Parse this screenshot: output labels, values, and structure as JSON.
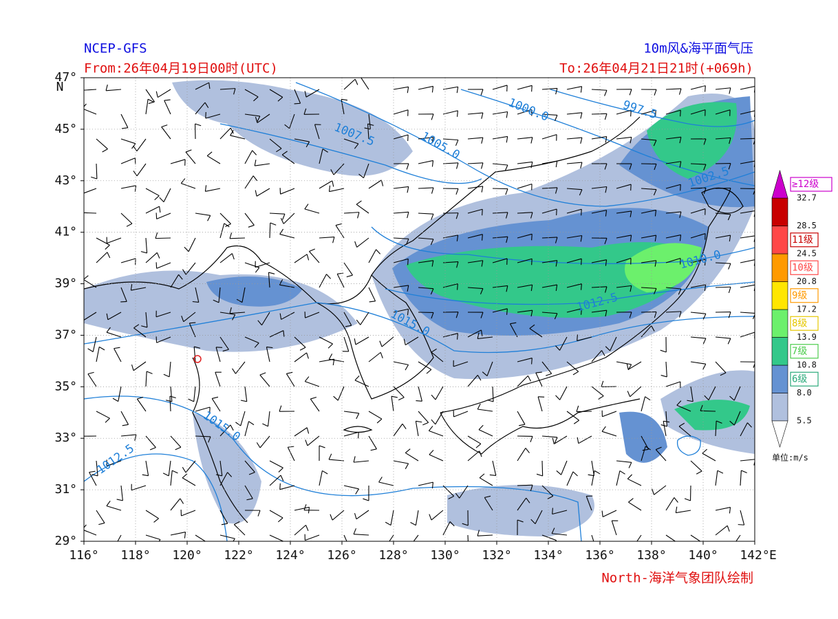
{
  "header": {
    "source": "NCEP-GFS",
    "product": "10m风&海平面气压",
    "from": "From:26年04月19日00时(UTC)",
    "to": "To:26年04月21日21时(+069h)"
  },
  "map": {
    "xlim": [
      116,
      142
    ],
    "ylim": [
      29,
      47
    ],
    "xticks": [
      {
        "value": 116,
        "label": "116°"
      },
      {
        "value": 118,
        "label": "118°"
      },
      {
        "value": 120,
        "label": "120°"
      },
      {
        "value": 122,
        "label": "122°"
      },
      {
        "value": 124,
        "label": "124°"
      },
      {
        "value": 126,
        "label": "126°"
      },
      {
        "value": 128,
        "label": "128°"
      },
      {
        "value": 130,
        "label": "130°"
      },
      {
        "value": 132,
        "label": "132°"
      },
      {
        "value": 134,
        "label": "134°"
      },
      {
        "value": 136,
        "label": "136°"
      },
      {
        "value": 138,
        "label": "138°"
      },
      {
        "value": 140,
        "label": "140°"
      },
      {
        "value": 142,
        "label": "142°"
      }
    ],
    "x_unit": "E",
    "yticks": [
      {
        "value": 29,
        "label": "29°"
      },
      {
        "value": 31,
        "label": "31°"
      },
      {
        "value": 33,
        "label": "33°"
      },
      {
        "value": 35,
        "label": "35°"
      },
      {
        "value": 37,
        "label": "37°"
      },
      {
        "value": 39,
        "label": "39°"
      },
      {
        "value": 41,
        "label": "41°"
      },
      {
        "value": 43,
        "label": "43°"
      },
      {
        "value": 45,
        "label": "45°"
      },
      {
        "value": 47,
        "label": "47°"
      }
    ],
    "y_unit": "N",
    "isobar_labels": [
      "1000.0",
      "997.5",
      "1007.5",
      "1005.0",
      "1002.5",
      "1010.0",
      "1012.5",
      "1015.0",
      "1015.0",
      "1012.5"
    ]
  },
  "colorbar": {
    "levels": [
      "5.5",
      "8.0",
      "10.8",
      "13.9",
      "17.2",
      "20.8",
      "24.5",
      "28.5",
      "32.7"
    ],
    "colors": [
      "#b0c0de",
      "#6592d2",
      "#33c88a",
      "#6cf06c",
      "#ffe600",
      "#ff9a00",
      "#ff4848",
      "#c80000"
    ],
    "top_color": "#cc00cc",
    "grades": [
      {
        "label": "6级",
        "color": "#2aaa7a"
      },
      {
        "label": "7级",
        "color": "#4ccc4c"
      },
      {
        "label": "8级",
        "color": "#e6c800"
      },
      {
        "label": "9级",
        "color": "#ff9a00"
      },
      {
        "label": "10级",
        "color": "#ff4848"
      },
      {
        "label": "11级",
        "color": "#c80000"
      },
      {
        "label": "≥12级",
        "color": "#cc00cc"
      }
    ],
    "unit": "单位:m/s"
  },
  "footer": {
    "credit": "North-海洋气象团队绘制"
  }
}
